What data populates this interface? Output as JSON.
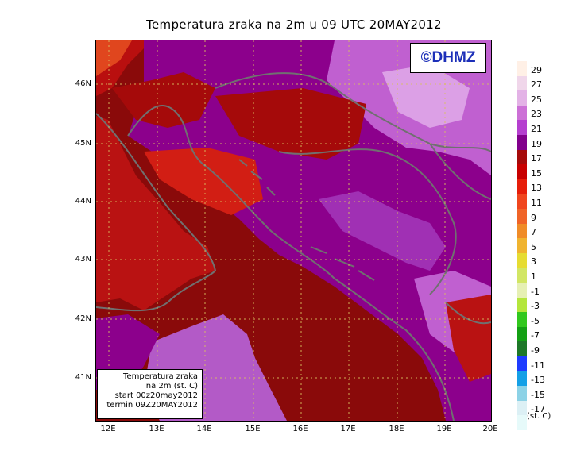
{
  "title": "Temperatura zraka na 2m u 09 UTC 20MAY2012",
  "logo": "©DHMZ",
  "infobox": {
    "line1": "Temperatura zraka",
    "line2": "na 2m (st. C)",
    "line3": "start 00z20may2012",
    "line4": "termin 09Z20MAY2012"
  },
  "lat_labels": [
    "46N",
    "45N",
    "44N",
    "43N",
    "42N",
    "41N"
  ],
  "lon_labels": [
    "12E",
    "13E",
    "14E",
    "15E",
    "16E",
    "17E",
    "18E",
    "19E",
    "20E"
  ],
  "legend": {
    "unit": "(st. C)",
    "labels": [
      "29",
      "27",
      "25",
      "23",
      "21",
      "19",
      "17",
      "15",
      "13",
      "11",
      "9",
      "7",
      "5",
      "3",
      "1",
      "-1",
      "-3",
      "-5",
      "-7",
      "-9",
      "-11",
      "-13",
      "-15",
      "-17"
    ],
    "colors": [
      "#fff0e6",
      "#f0d6ea",
      "#e3b2e6",
      "#cc70d6",
      "#b53fcf",
      "#82008c",
      "#a50a0a",
      "#c80000",
      "#e61e0a",
      "#f0461e",
      "#f06428",
      "#f08c28",
      "#f0b430",
      "#e6dc32",
      "#d2e664",
      "#e6f0b4",
      "#b4e63c",
      "#32c81e",
      "#14a014",
      "#1e7828",
      "#1e3cff",
      "#14a0e6",
      "#8cd2e6",
      "#dcf0f5",
      "#e6fafa"
    ]
  },
  "map_colors": {
    "sea": "#8a0a0a",
    "coastal_red": "#b90f0f",
    "warm_red": "#d21e14",
    "purple": "#8c008c",
    "light_purple": "#c060d0",
    "pale_purple": "#dca0e6",
    "orange": "#f06a2a",
    "coast": "#707070"
  }
}
